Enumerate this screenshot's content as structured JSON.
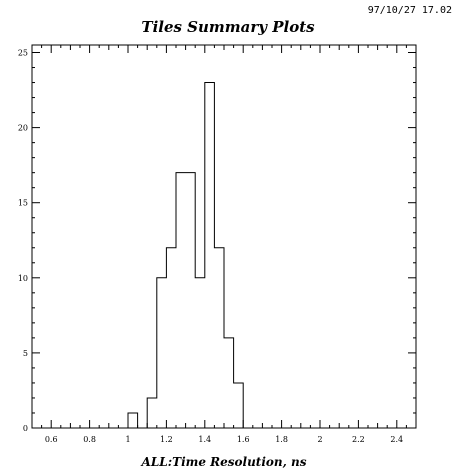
{
  "header": {
    "timestamp": "97/10/27  17.02"
  },
  "chart_data": {
    "type": "bar",
    "title": "Tiles Summary Plots",
    "xlabel": "ALL:Time Resolution, ns",
    "ylabel": "",
    "xlim": [
      0.5,
      2.5
    ],
    "ylim": [
      0,
      25.5
    ],
    "bin_width": 0.05,
    "x_ticks": [
      0.6,
      0.8,
      1,
      1.2,
      1.4,
      1.6,
      1.8,
      2,
      2.2,
      2.4
    ],
    "x_tick_labels": [
      "0.6",
      "0.8",
      "1",
      "1.2",
      "1.4",
      "1.6",
      "1.8",
      "2",
      "2.2",
      "2.4"
    ],
    "y_ticks": [
      0,
      5,
      10,
      15,
      20,
      25
    ],
    "y_tick_labels": [
      "0",
      "5",
      "10",
      "15",
      "20",
      "25"
    ],
    "bins": [
      {
        "x0": 0.95,
        "value": 0
      },
      {
        "x0": 1.0,
        "value": 1
      },
      {
        "x0": 1.05,
        "value": 0
      },
      {
        "x0": 1.1,
        "value": 2
      },
      {
        "x0": 1.15,
        "value": 10
      },
      {
        "x0": 1.2,
        "value": 12
      },
      {
        "x0": 1.25,
        "value": 17
      },
      {
        "x0": 1.3,
        "value": 17
      },
      {
        "x0": 1.35,
        "value": 10
      },
      {
        "x0": 1.4,
        "value": 23
      },
      {
        "x0": 1.45,
        "value": 12
      },
      {
        "x0": 1.5,
        "value": 6
      },
      {
        "x0": 1.55,
        "value": 3
      },
      {
        "x0": 1.6,
        "value": 0
      }
    ]
  }
}
